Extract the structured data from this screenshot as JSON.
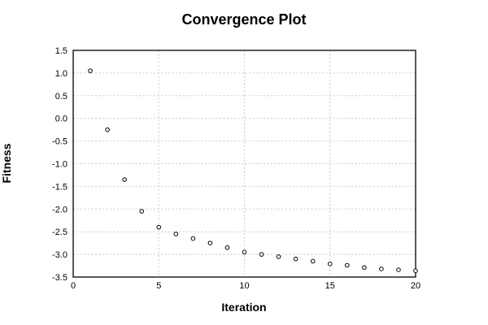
{
  "chart_data": {
    "type": "scatter",
    "title": "Convergence Plot",
    "xlabel": "Iteration",
    "ylabel": "Fitness",
    "x": [
      1,
      2,
      3,
      4,
      5,
      6,
      7,
      8,
      9,
      10,
      11,
      12,
      13,
      14,
      15,
      16,
      17,
      18,
      19,
      20
    ],
    "y": [
      1.05,
      -0.25,
      -1.35,
      -2.05,
      -2.4,
      -2.55,
      -2.65,
      -2.75,
      -2.85,
      -2.95,
      -3.0,
      -3.05,
      -3.1,
      -3.15,
      -3.21,
      -3.24,
      -3.29,
      -3.32,
      -3.34,
      -3.36
    ],
    "x_ticks": [
      0,
      5,
      10,
      15,
      20
    ],
    "x_tick_labels": [
      "0",
      "5",
      "10",
      "15",
      "20"
    ],
    "y_ticks": [
      1.5,
      1.0,
      0.5,
      0.0,
      -0.5,
      -1.0,
      -1.5,
      -2.0,
      -2.5,
      -3.0,
      -3.5
    ],
    "y_tick_labels": [
      "1.5",
      "1.0",
      "0.5",
      "0.0",
      "-0.5",
      "-1.0",
      "-1.5",
      "-2.0",
      "-2.5",
      "-3.0",
      "-3.5"
    ],
    "xlim": [
      0,
      20
    ],
    "ylim": [
      -3.5,
      1.5
    ],
    "grid": "dotted",
    "legend": "none",
    "marker": "open-circle",
    "colors": {
      "background": "#ffffff",
      "border": "#000000",
      "grid": "#c9c9c9",
      "marker_stroke": "#000000",
      "marker_fill": "#ffffff",
      "text": "#000000"
    }
  }
}
